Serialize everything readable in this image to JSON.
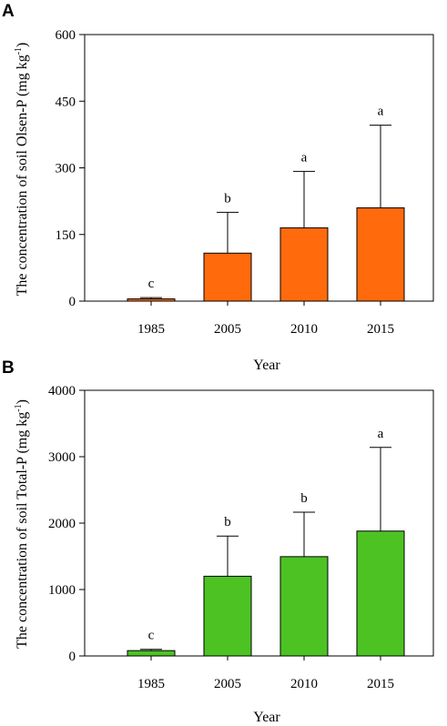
{
  "chart_data": [
    {
      "type": "bar",
      "panel_label": "A",
      "categories": [
        "1985",
        "2005",
        "2010",
        "2015"
      ],
      "values": [
        5,
        108,
        165,
        210
      ],
      "error_upper": [
        8,
        200,
        292,
        396
      ],
      "significance": [
        "c",
        "b",
        "a",
        "a"
      ],
      "xlabel": "Year",
      "ylabel_main": "The concentration of soil Olsen-P (mg kg",
      "ylabel_sup": "-1",
      "ylabel_end": ")",
      "ylim": [
        0,
        600
      ],
      "yticks": [
        "0",
        "150",
        "300",
        "450",
        "600"
      ],
      "bar_color": "#ff6a0d",
      "grid": false
    },
    {
      "type": "bar",
      "panel_label": "B",
      "categories": [
        "1985",
        "2005",
        "2010",
        "2015"
      ],
      "values": [
        80,
        1200,
        1495,
        1880
      ],
      "error_upper": [
        100,
        1805,
        2165,
        3140
      ],
      "significance": [
        "c",
        "b",
        "b",
        "a"
      ],
      "xlabel": "Year",
      "ylabel_main": "The concentration of soil  Total-P (mg kg",
      "ylabel_sup": "-1",
      "ylabel_end": ")",
      "ylim": [
        0,
        4000
      ],
      "yticks": [
        "0",
        "1000",
        "2000",
        "3000",
        "4000"
      ],
      "bar_color": "#4cc322",
      "grid": false
    }
  ]
}
